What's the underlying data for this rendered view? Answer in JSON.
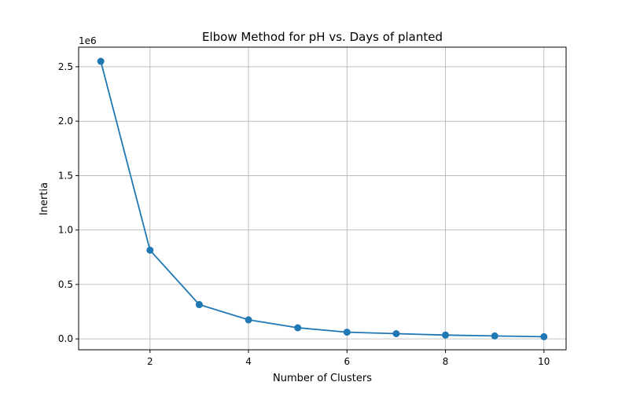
{
  "chart_data": {
    "type": "line",
    "title": "Elbow Method for pH vs. Days of planted",
    "xlabel": "Number of Clusters",
    "ylabel": "Inertia",
    "y_offset_label": "1e6",
    "x": [
      1,
      2,
      3,
      4,
      5,
      6,
      7,
      8,
      9,
      10
    ],
    "series": [
      {
        "values": [
          2550000,
          815000,
          315000,
          175000,
          102000,
          62000,
          48000,
          35000,
          27000,
          20000
        ]
      }
    ],
    "xlim": [
      0.55,
      10.45
    ],
    "ylim": [
      -0.1,
      2.68
    ],
    "y_scale_factor": 1000000,
    "xticks": [
      2,
      4,
      6,
      8,
      10
    ],
    "xtick_labels": [
      "2",
      "4",
      "6",
      "8",
      "10"
    ],
    "yticks": [
      0.0,
      0.5,
      1.0,
      1.5,
      2.0,
      2.5
    ],
    "ytick_labels": [
      "0.0",
      "0.5",
      "1.0",
      "1.5",
      "2.0",
      "2.5"
    ],
    "grid": true,
    "line_color": "#1f77b4",
    "grid_color": "#b0b0b0"
  }
}
